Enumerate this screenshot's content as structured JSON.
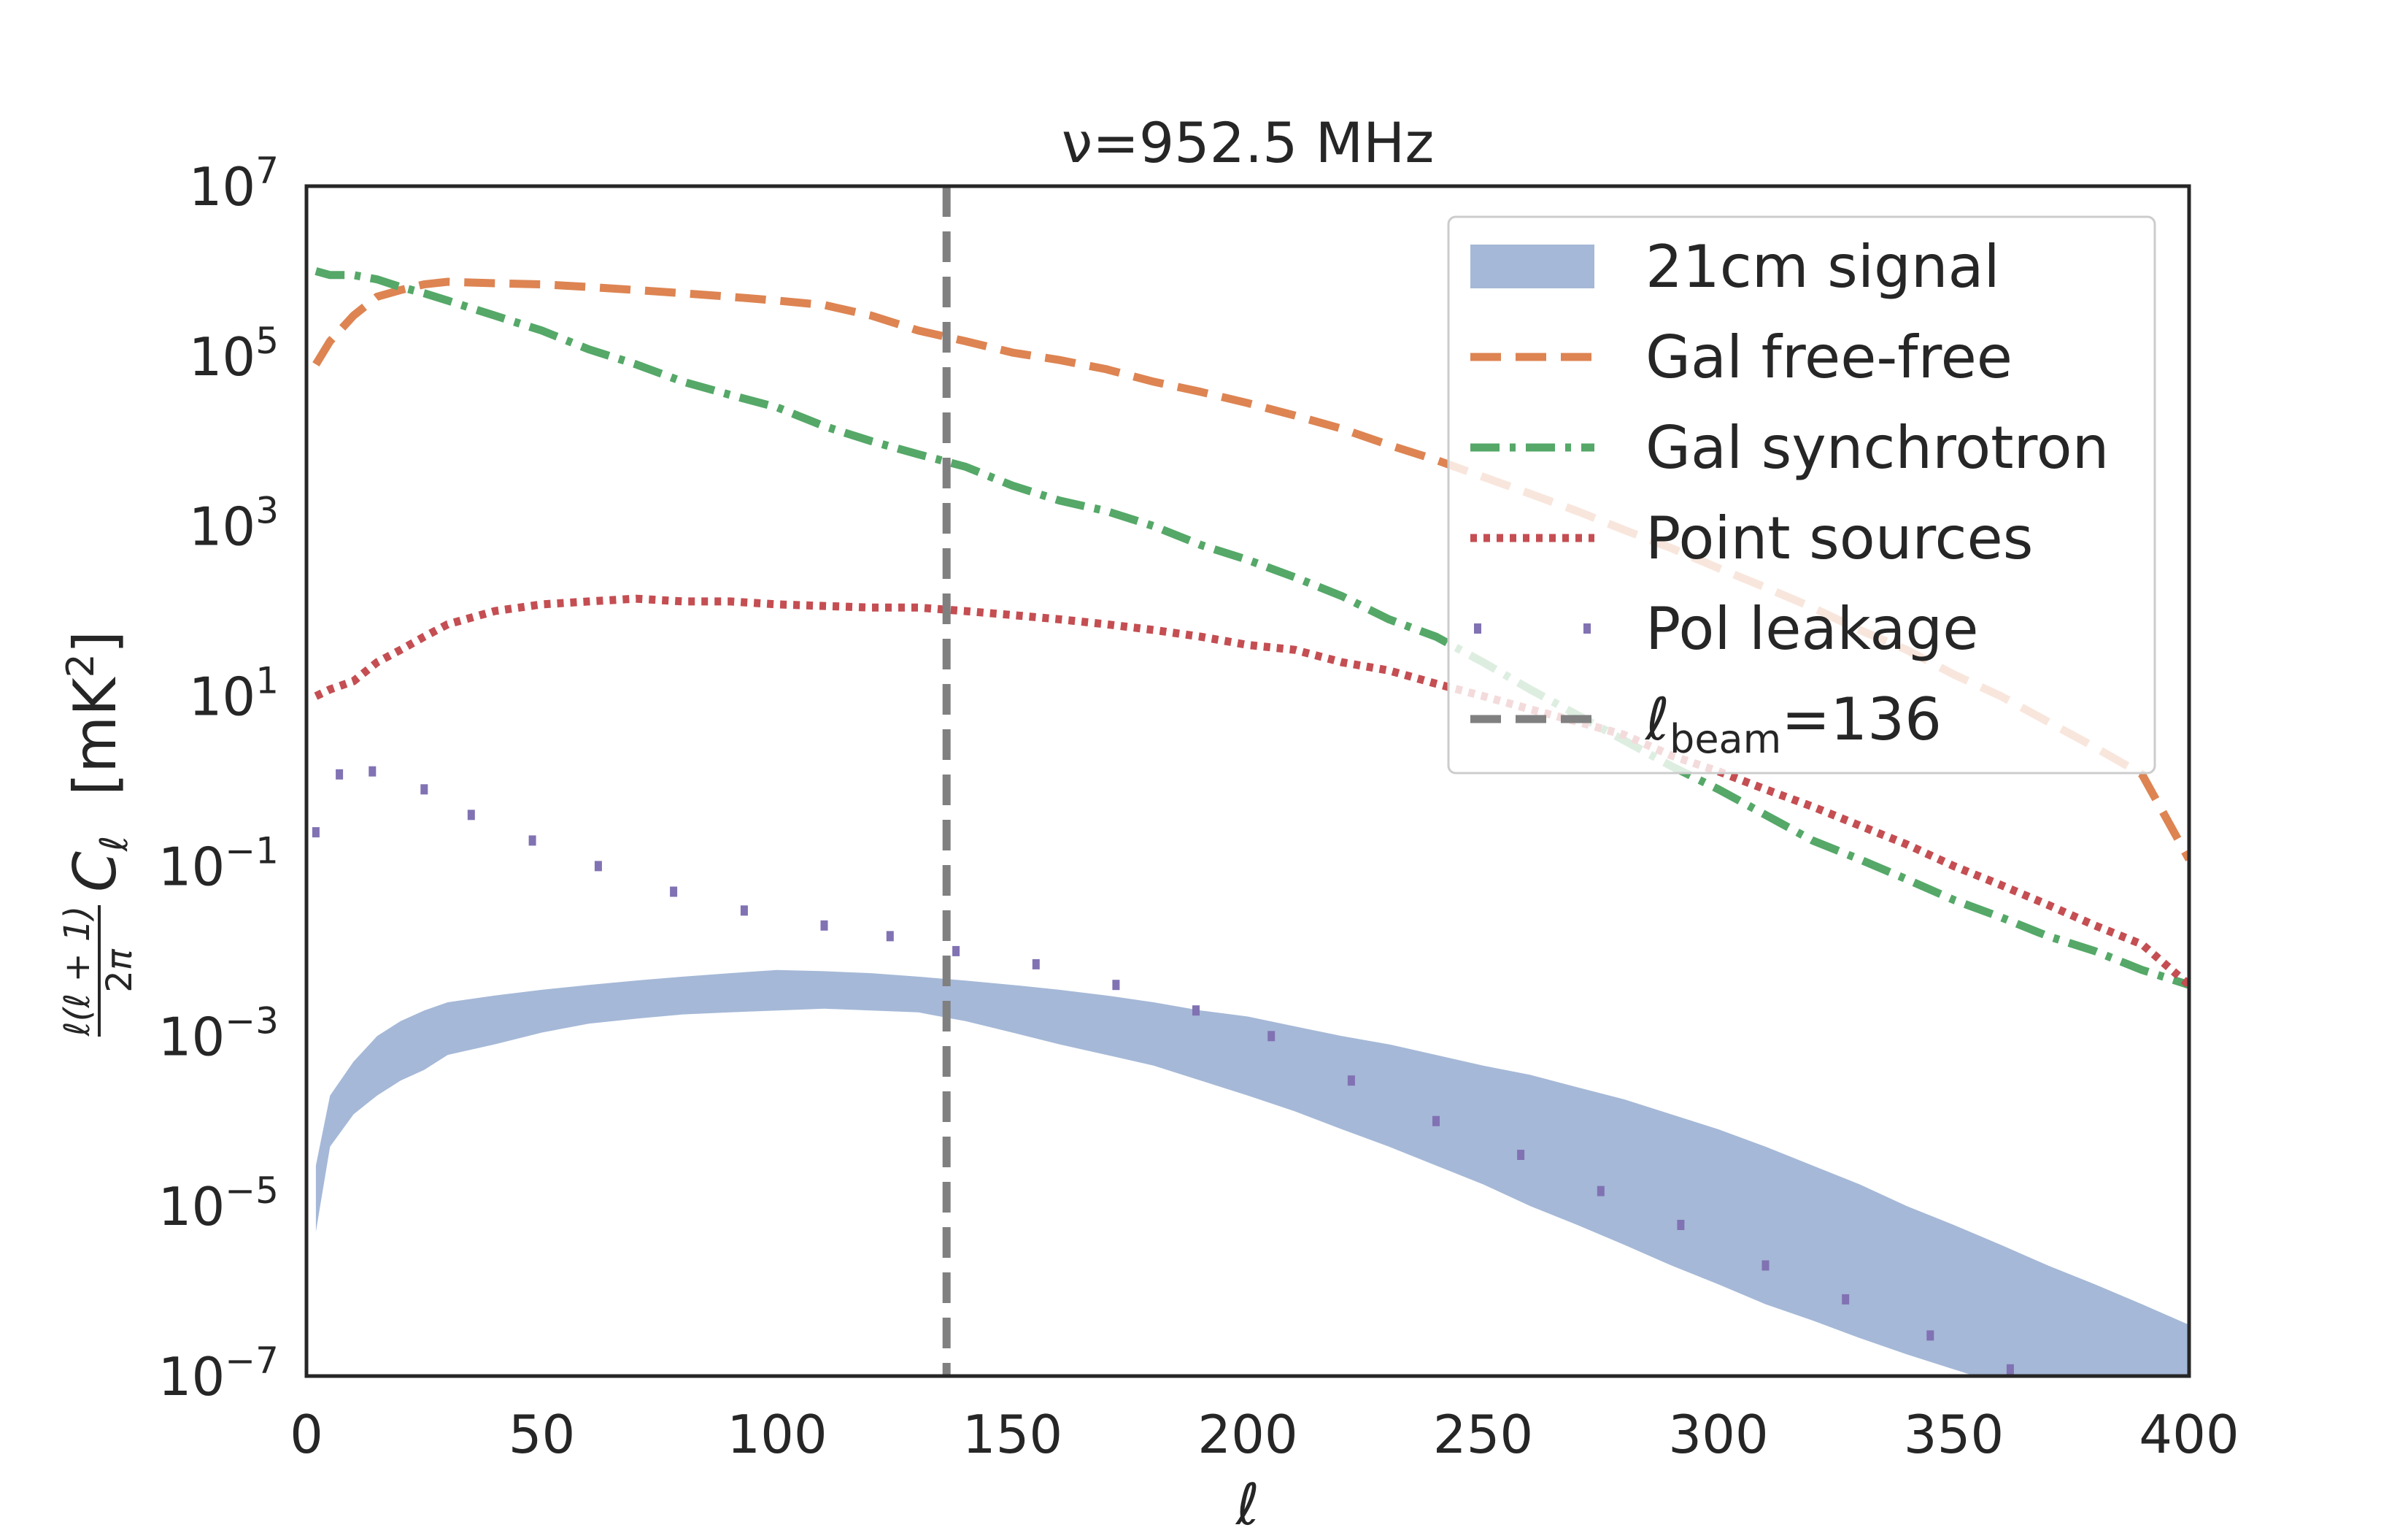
{
  "chart_data": {
    "type": "line",
    "title": "ν=952.5 MHz",
    "xlabel": "ℓ",
    "ylabel": "ℓ(ℓ+1)/2π Cℓ [mK²]",
    "xlim": [
      0,
      400
    ],
    "ylim": [
      1e-07,
      10000000.0
    ],
    "yscale": "log",
    "grid": false,
    "legend_position": "top-right",
    "xticks": [
      "0",
      "50",
      "100",
      "150",
      "200",
      "250",
      "300",
      "350",
      "400"
    ],
    "yticks": [
      {
        "base": "10",
        "exp": "7"
      },
      {
        "base": "10",
        "exp": "5"
      },
      {
        "base": "10",
        "exp": "3"
      },
      {
        "base": "10",
        "exp": "1"
      },
      {
        "base": "10",
        "exp": "−1"
      },
      {
        "base": "10",
        "exp": "−3"
      },
      {
        "base": "10",
        "exp": "−5"
      },
      {
        "base": "10",
        "exp": "−7"
      }
    ],
    "x": [
      2,
      5,
      10,
      15,
      20,
      25,
      30,
      40,
      50,
      60,
      70,
      80,
      90,
      100,
      110,
      120,
      130,
      140,
      150,
      160,
      170,
      180,
      190,
      200,
      210,
      220,
      230,
      240,
      250,
      260,
      270,
      280,
      290,
      300,
      310,
      320,
      330,
      340,
      350,
      360,
      370,
      380,
      390,
      400
    ],
    "series": [
      {
        "name": "Gal free-free",
        "style": "dashed",
        "color": "#dd8452",
        "values": [
          80000,
          150000,
          300000,
          500000,
          600000,
          700000,
          750000,
          720000,
          700000,
          650000,
          600000,
          550000,
          500000,
          450000,
          400000,
          300000,
          200000,
          150000,
          110000,
          90000,
          70000,
          50000,
          38000,
          28000,
          20000,
          14000,
          9000,
          6000,
          3800,
          2400,
          1500,
          900,
          550,
          320,
          190,
          110,
          60,
          35,
          18,
          10,
          5,
          2.5,
          1.2,
          0.12
        ]
      },
      {
        "name": "Gal synchrotron",
        "style": "dash-dot",
        "color": "#55a868",
        "values": [
          1000000,
          900000,
          900000,
          800000,
          650000,
          550000,
          450000,
          300000,
          200000,
          120000,
          80000,
          50000,
          35000,
          25000,
          15000,
          10000,
          7000,
          5000,
          3000,
          2000,
          1500,
          1000,
          600,
          400,
          250,
          150,
          80,
          50,
          25,
          12,
          6,
          3,
          1.5,
          0.8,
          0.4,
          0.2,
          0.12,
          0.07,
          0.04,
          0.025,
          0.015,
          0.01,
          0.006,
          0.004
        ]
      },
      {
        "name": "Point sources",
        "style": "dotted",
        "color": "#c44e52",
        "values": [
          10,
          12,
          15,
          25,
          35,
          50,
          70,
          100,
          120,
          130,
          140,
          130,
          130,
          120,
          115,
          110,
          110,
          100,
          90,
          80,
          70,
          60,
          50,
          40,
          35,
          25,
          20,
          14,
          10,
          7,
          5,
          3.5,
          2,
          1.3,
          0.8,
          0.5,
          0.3,
          0.18,
          0.1,
          0.06,
          0.035,
          0.02,
          0.012,
          0.004
        ]
      },
      {
        "name": "Pol leakage",
        "style": "sparse-dots",
        "color": "#8172b3",
        "x": [
          2,
          7,
          14,
          25,
          35,
          48,
          62,
          78,
          93,
          110,
          124,
          138,
          155,
          172,
          189,
          205,
          222,
          240,
          258,
          275,
          292,
          310,
          327,
          345,
          362,
          380,
          398
        ],
        "values": [
          0.25,
          1.2,
          1.3,
          0.8,
          0.4,
          0.2,
          0.1,
          0.05,
          0.03,
          0.02,
          0.015,
          0.01,
          0.007,
          0.004,
          0.002,
          0.001,
          0.0003,
          0.0001,
          4e-05,
          1.5e-05,
          6e-06,
          2e-06,
          8e-07,
          3e-07,
          1.2e-07,
          5e-08,
          2e-08
        ]
      },
      {
        "name": "21cm signal",
        "style": "band",
        "color": "#4c72b0",
        "values_low": [
          5e-06,
          5e-05,
          0.00012,
          0.0002,
          0.0003,
          0.0004,
          0.0006,
          0.0008,
          0.0011,
          0.0014,
          0.0016,
          0.0018,
          0.0019,
          0.002,
          0.0021,
          0.002,
          0.0019,
          0.0015,
          0.0011,
          0.0008,
          0.0006,
          0.00045,
          0.0003,
          0.0002,
          0.00013,
          8e-05,
          5e-05,
          3e-05,
          1.8e-05,
          1e-05,
          6e-06,
          3.5e-06,
          2e-06,
          1.2e-06,
          7e-07,
          4.5e-07,
          2.8e-07,
          1.8e-07,
          1.2e-07,
          8e-08,
          5e-08,
          3e-08,
          2e-08,
          1e-08
        ],
        "values_high": [
          3e-05,
          0.0002,
          0.0005,
          0.001,
          0.0015,
          0.002,
          0.0025,
          0.003,
          0.0035,
          0.004,
          0.0045,
          0.005,
          0.0055,
          0.006,
          0.0058,
          0.0055,
          0.005,
          0.0045,
          0.004,
          0.0035,
          0.003,
          0.0025,
          0.002,
          0.0017,
          0.0013,
          0.001,
          0.0008,
          0.0006,
          0.00045,
          0.00035,
          0.00025,
          0.00018,
          0.00012,
          8e-05,
          5e-05,
          3e-05,
          1.8e-05,
          1e-05,
          6e-06,
          3.5e-06,
          2e-06,
          1.2e-06,
          7e-07,
          4e-07
        ]
      },
      {
        "name": "ℓbeam=136",
        "style": "vline",
        "color": "#808080",
        "x_value": 136
      }
    ],
    "legend": [
      {
        "key": "21cm",
        "label": "21cm signal",
        "style": "band",
        "color": "#4c72b0"
      },
      {
        "key": "ff",
        "label": "Gal free-free",
        "style": "dashed",
        "color": "#dd8452"
      },
      {
        "key": "sync",
        "label": "Gal synchrotron",
        "style": "dash-dot",
        "color": "#55a868"
      },
      {
        "key": "ps",
        "label": "Point sources",
        "style": "dotted",
        "color": "#c44e52"
      },
      {
        "key": "pol",
        "label": "Pol leakage",
        "style": "sparse-dots",
        "color": "#8172b3"
      },
      {
        "key": "beam",
        "label_main": "ℓ",
        "label_sub": "beam",
        "label_rest": "=136",
        "style": "vline",
        "color": "#808080"
      }
    ]
  }
}
